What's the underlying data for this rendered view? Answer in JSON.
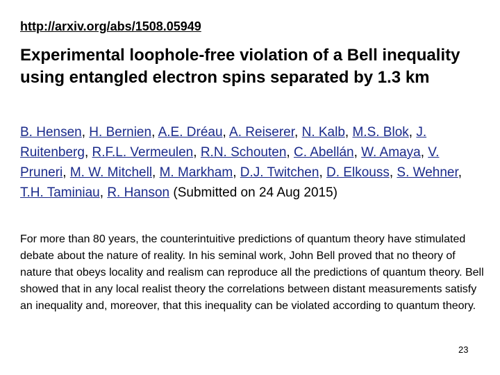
{
  "slide": {
    "url": "http://arxiv.org/abs/1508.05949",
    "title": "Experimental loophole-free violation of a Bell inequality using entangled electron spins separated by 1.3 km",
    "authors": [
      {
        "name": "B. Hensen",
        "sep": ", "
      },
      {
        "name": "H. Bernien",
        "sep": ", "
      },
      {
        "name": "A.E. Dréau",
        "sep": ", "
      },
      {
        "name": "A. Reiserer",
        "sep": ", "
      },
      {
        "name": "N. Kalb",
        "sep": ", "
      },
      {
        "name": "M.S. Blok",
        "sep": ", "
      },
      {
        "name": "J. Ruitenberg",
        "sep": ", "
      },
      {
        "name": "R.F.L. Vermeulen",
        "sep": ", "
      },
      {
        "name": "R.N. Schouten",
        "sep": ", "
      },
      {
        "name": "C. Abellán",
        "sep": ", "
      },
      {
        "name": "W. Amaya",
        "sep": ", "
      },
      {
        "name": "V. Pruneri",
        "sep": ", "
      },
      {
        "name": "M. W. Mitchell",
        "sep": ", "
      },
      {
        "name": "M. Markham",
        "sep": ", "
      },
      {
        "name": "D.J. Twitchen",
        "sep": ", "
      },
      {
        "name": "D. Elkouss",
        "sep": ", "
      },
      {
        "name": "S. Wehner",
        "sep": ", "
      },
      {
        "name": "T.H. Taminiau",
        "sep": ", "
      },
      {
        "name": "R. Hanson",
        "sep": " "
      }
    ],
    "submitted": "(Submitted on 24 Aug 2015)",
    "abstract": "For more than 80 years, the counterintuitive predictions of quantum theory have stimulated debate about the nature of reality. In his seminal work, John Bell proved that no theory of nature that obeys locality and realism can reproduce all the predictions of quantum theory. Bell showed that in any local realist theory the correlations between distant measurements satisfy an inequality and, moreover, that this inequality can be violated according to quantum theory.",
    "page_number": "23"
  },
  "colors": {
    "author_link": "#1a2a8a",
    "text": "#000000",
    "background": "#ffffff"
  }
}
